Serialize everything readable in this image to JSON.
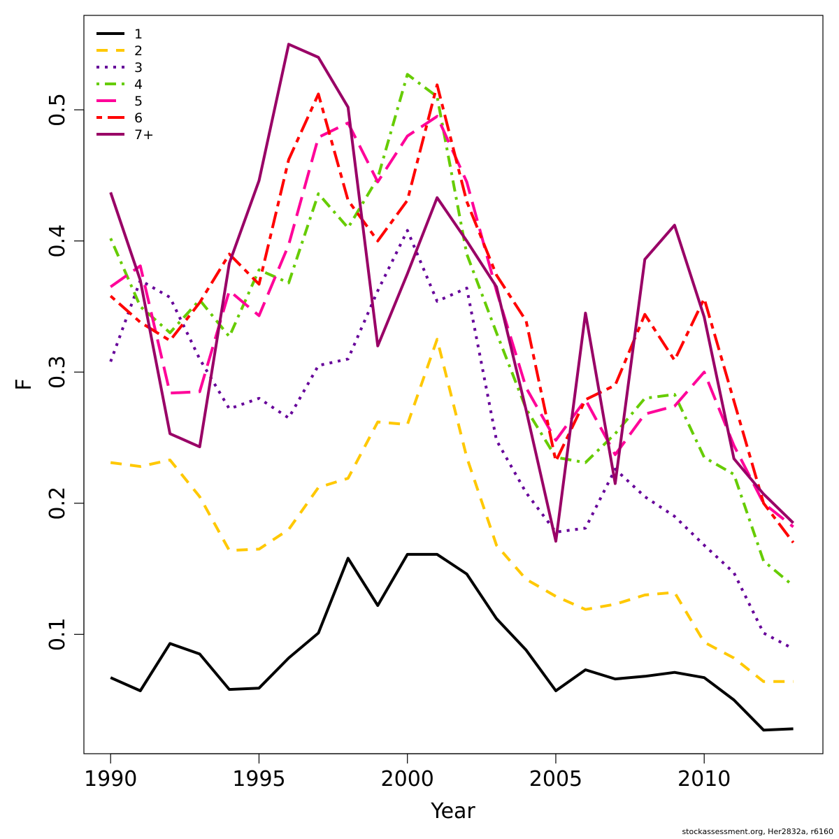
{
  "chart_data": {
    "type": "line",
    "title": "",
    "xlabel": "Year",
    "ylabel": "F",
    "xlim": [
      1989.1,
      2014.0
    ],
    "ylim": [
      0.009,
      0.572
    ],
    "x_ticks": [
      1990,
      1995,
      2000,
      2005,
      2010
    ],
    "y_ticks": [
      0.1,
      0.2,
      0.3,
      0.4,
      0.5
    ],
    "legend_position": "top-left",
    "grid": false,
    "x": [
      1990,
      1991,
      1992,
      1993,
      1994,
      1995,
      1996,
      1997,
      1998,
      1999,
      2000,
      2001,
      2002,
      2003,
      2004,
      2005,
      2006,
      2007,
      2008,
      2009,
      2010,
      2011,
      2012,
      2013
    ],
    "series": [
      {
        "name": "1",
        "color": "#000000",
        "dash": "solid",
        "values": [
          0.067,
          0.057,
          0.093,
          0.085,
          0.058,
          0.059,
          0.082,
          0.101,
          0.158,
          0.122,
          0.161,
          0.161,
          0.146,
          0.112,
          0.088,
          0.057,
          0.073,
          0.066,
          0.068,
          0.071,
          0.067,
          0.05,
          0.027,
          0.028
        ]
      },
      {
        "name": "2",
        "color": "#FFC800",
        "dash": "dashed",
        "values": [
          0.231,
          0.228,
          0.233,
          0.205,
          0.164,
          0.165,
          0.18,
          0.212,
          0.219,
          0.262,
          0.26,
          0.325,
          0.235,
          0.168,
          0.142,
          0.129,
          0.119,
          0.123,
          0.13,
          0.132,
          0.094,
          0.082,
          0.064,
          0.064
        ]
      },
      {
        "name": "3",
        "color": "#660099",
        "dash": "dotted",
        "values": [
          0.308,
          0.37,
          0.357,
          0.31,
          0.272,
          0.28,
          0.265,
          0.305,
          0.31,
          0.362,
          0.408,
          0.354,
          0.364,
          0.248,
          0.208,
          0.178,
          0.181,
          0.226,
          0.205,
          0.19,
          0.168,
          0.147,
          0.101,
          0.089
        ]
      },
      {
        "name": "4",
        "color": "#66CC00",
        "dash": "dotdash",
        "values": [
          0.402,
          0.35,
          0.33,
          0.355,
          0.327,
          0.378,
          0.368,
          0.436,
          0.41,
          0.448,
          0.527,
          0.51,
          0.39,
          0.33,
          0.272,
          0.235,
          0.231,
          0.253,
          0.28,
          0.283,
          0.235,
          0.222,
          0.156,
          0.137
        ]
      },
      {
        "name": "5",
        "color": "#FF0099",
        "dash": "longdash",
        "values": [
          0.365,
          0.381,
          0.284,
          0.285,
          0.362,
          0.343,
          0.397,
          0.479,
          0.49,
          0.445,
          0.48,
          0.495,
          0.445,
          0.362,
          0.288,
          0.248,
          0.279,
          0.237,
          0.268,
          0.274,
          0.3,
          0.244,
          0.2,
          0.182
        ]
      },
      {
        "name": "6",
        "color": "#FF0000",
        "dash": "twodash",
        "values": [
          0.358,
          0.338,
          0.324,
          0.353,
          0.39,
          0.367,
          0.462,
          0.512,
          0.431,
          0.4,
          0.431,
          0.519,
          0.43,
          0.374,
          0.339,
          0.232,
          0.279,
          0.29,
          0.344,
          0.309,
          0.356,
          0.278,
          0.2,
          0.17
        ]
      },
      {
        "name": "7+",
        "color": "#990066",
        "dash": "solid",
        "values": [
          0.437,
          0.37,
          0.253,
          0.243,
          0.383,
          0.446,
          0.55,
          0.54,
          0.502,
          0.32,
          0.375,
          0.433,
          0.4,
          0.365,
          0.271,
          0.171,
          0.345,
          0.215,
          0.386,
          0.412,
          0.342,
          0.234,
          0.207,
          0.185
        ]
      }
    ]
  },
  "footer": {
    "credit": "stockassessment.org, Her2832a, r6160"
  }
}
